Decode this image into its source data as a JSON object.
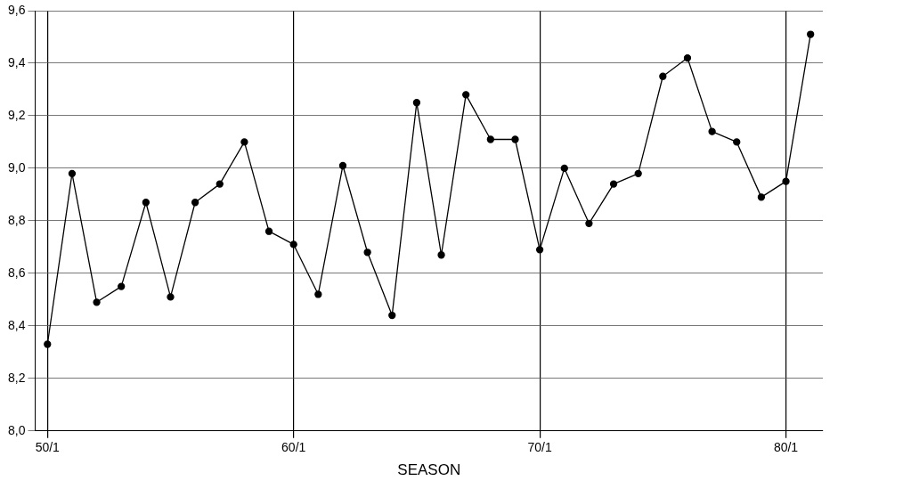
{
  "chart_data": {
    "type": "line",
    "xlabel": "SEASON",
    "categories": [
      "50/1",
      null,
      null,
      null,
      null,
      null,
      null,
      null,
      null,
      null,
      "60/1",
      null,
      null,
      null,
      null,
      null,
      null,
      null,
      null,
      null,
      "70/1",
      null,
      null,
      null,
      null,
      null,
      null,
      null,
      null,
      null,
      "80/1",
      null
    ],
    "series": [
      {
        "color": "#000000",
        "values": [
          8.33,
          8.98,
          8.49,
          8.55,
          8.87,
          8.51,
          8.87,
          8.94,
          9.1,
          8.76,
          8.71,
          8.52,
          9.01,
          8.68,
          8.44,
          9.25,
          8.67,
          9.28,
          9.11,
          9.11,
          8.69,
          9.0,
          8.79,
          8.94,
          8.98,
          9.35,
          9.42,
          9.14,
          9.1,
          8.89,
          8.95,
          9.51
        ]
      }
    ],
    "ylim": [
      8.0,
      9.6
    ],
    "yticks": [
      {
        "value": 8.0,
        "label": "8,0"
      },
      {
        "value": 8.2,
        "label": "8,2"
      },
      {
        "value": 8.4,
        "label": "8,4"
      },
      {
        "value": 8.6,
        "label": "8,6"
      },
      {
        "value": 8.8,
        "label": "8,8"
      },
      {
        "value": 9.0,
        "label": "9,0"
      },
      {
        "value": 9.2,
        "label": "9,2"
      },
      {
        "value": 9.4,
        "label": "9,4"
      },
      {
        "value": 9.6,
        "label": "9,6"
      }
    ],
    "grid": true,
    "marker": "circle",
    "line_style": "solid"
  }
}
